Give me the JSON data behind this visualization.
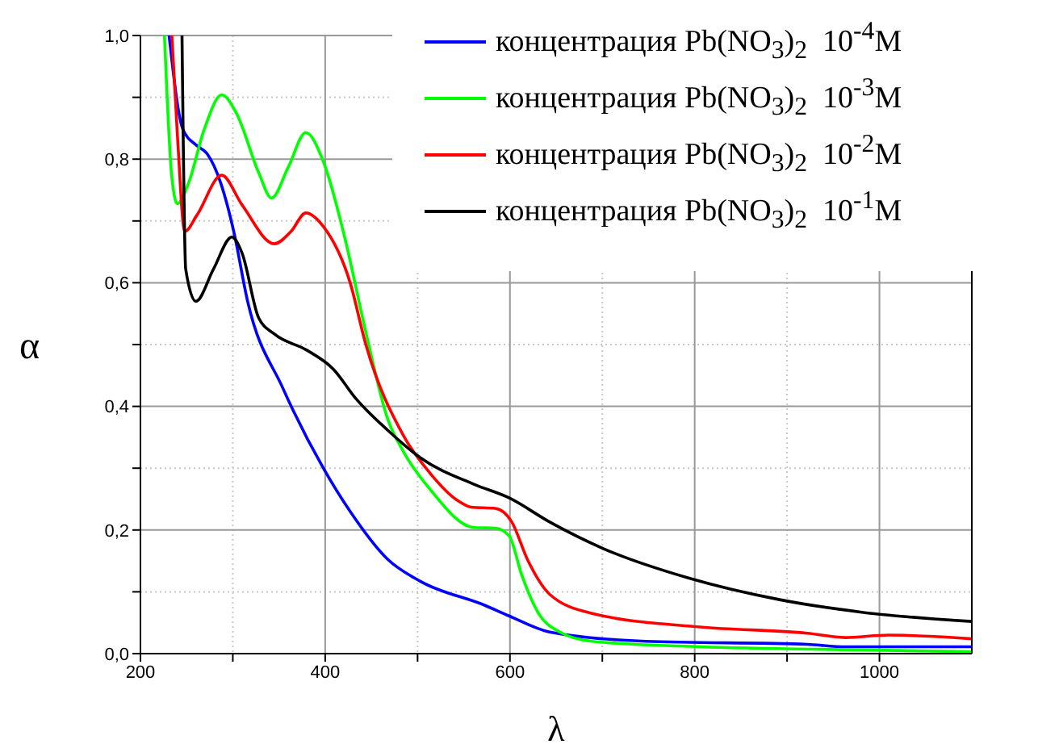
{
  "chart_data": {
    "type": "line",
    "xlabel": "λ",
    "ylabel": "α",
    "xlim": [
      200,
      1100
    ],
    "xticks": [
      200,
      {
        "value": 300,
        "label": null
      },
      400,
      {
        "value": 500,
        "label": null
      },
      600,
      {
        "value": 700,
        "label": null
      },
      800,
      {
        "value": 900,
        "label": null
      },
      1000
    ],
    "ylim": [
      0,
      1
    ],
    "yticks": [
      {
        "value": 0,
        "label": "0,0"
      },
      {
        "value": 0.1,
        "label": null
      },
      {
        "value": 0.2,
        "label": "0,2"
      },
      {
        "value": 0.3,
        "label": null
      },
      {
        "value": 0.4,
        "label": "0,4"
      },
      {
        "value": 0.5,
        "label": null
      },
      {
        "value": 0.6,
        "label": "0,6"
      },
      {
        "value": 0.7,
        "label": null
      },
      {
        "value": 0.8,
        "label": "0,8"
      },
      {
        "value": 0.9,
        "label": null
      },
      {
        "value": 1,
        "label": "1,0"
      }
    ],
    "grid": true,
    "legend": "top right",
    "series": [
      {
        "name": "концентрация Pb(NO$_{3}$)$_{2}$  10$^{-4}$M",
        "color": "#0000ff",
        "x": [
          231,
          246,
          261,
          272,
          287,
          301,
          316,
          354,
          398,
          427,
          468,
          503,
          573,
          599,
          643,
          747,
          922,
          963,
          1100
        ],
        "values": [
          1.0,
          0.848,
          0.822,
          0.809,
          0.761,
          0.683,
          0.57,
          0.43,
          0.3,
          0.23,
          0.152,
          0.117,
          0.078,
          0.061,
          0.035,
          0.02,
          0.015,
          0.011,
          0.011
        ]
      },
      {
        "name": "концентрация Pb(NO$_{3}$)$_{2}$  10$^{-3}$M",
        "color": "#00ff00",
        "x": [
          226,
          234,
          240,
          252,
          269,
          288,
          304,
          328,
          342,
          360,
          379,
          398,
          421,
          444,
          468,
          485,
          514,
          561,
          584,
          599,
          613,
          631,
          654,
          689,
          806,
          981,
          1100
        ],
        "values": [
          1.0,
          0.77,
          0.728,
          0.761,
          0.848,
          0.904,
          0.874,
          0.778,
          0.737,
          0.787,
          0.843,
          0.796,
          0.674,
          0.52,
          0.378,
          0.326,
          0.265,
          0.204,
          0.203,
          0.191,
          0.126,
          0.065,
          0.035,
          0.02,
          0.011,
          0.006,
          0.003
        ]
      },
      {
        "name": "концентрация Pb(NO$_{3}$)$_{2}$  10$^{-2}$M",
        "color": "#ff0000",
        "x": [
          234,
          240,
          248,
          261,
          288,
          310,
          345,
          363,
          379,
          398,
          427,
          444,
          485,
          514,
          543,
          558,
          584,
          602,
          619,
          643,
          689,
          806,
          922,
          963,
          1010,
          1100
        ],
        "values": [
          1.0,
          0.839,
          0.683,
          0.709,
          0.774,
          0.726,
          0.663,
          0.683,
          0.713,
          0.691,
          0.6,
          0.5,
          0.352,
          0.291,
          0.248,
          0.237,
          0.235,
          0.213,
          0.152,
          0.096,
          0.065,
          0.043,
          0.033,
          0.026,
          0.03,
          0.024
        ]
      },
      {
        "name": "концентрация Pb(NO$_{3}$)$_{2}$  10$^{-1}$M",
        "color": "#000000",
        "x": [
          245,
          249,
          260,
          279,
          299,
          310,
          328,
          345,
          380,
          409,
          433,
          468,
          503,
          561,
          599,
          643,
          701,
          794,
          893,
          981,
          1100
        ],
        "values": [
          1.0,
          0.622,
          0.57,
          0.622,
          0.674,
          0.648,
          0.543,
          0.517,
          0.491,
          0.46,
          0.413,
          0.361,
          0.317,
          0.274,
          0.252,
          0.213,
          0.17,
          0.122,
          0.087,
          0.067,
          0.052
        ]
      }
    ]
  }
}
